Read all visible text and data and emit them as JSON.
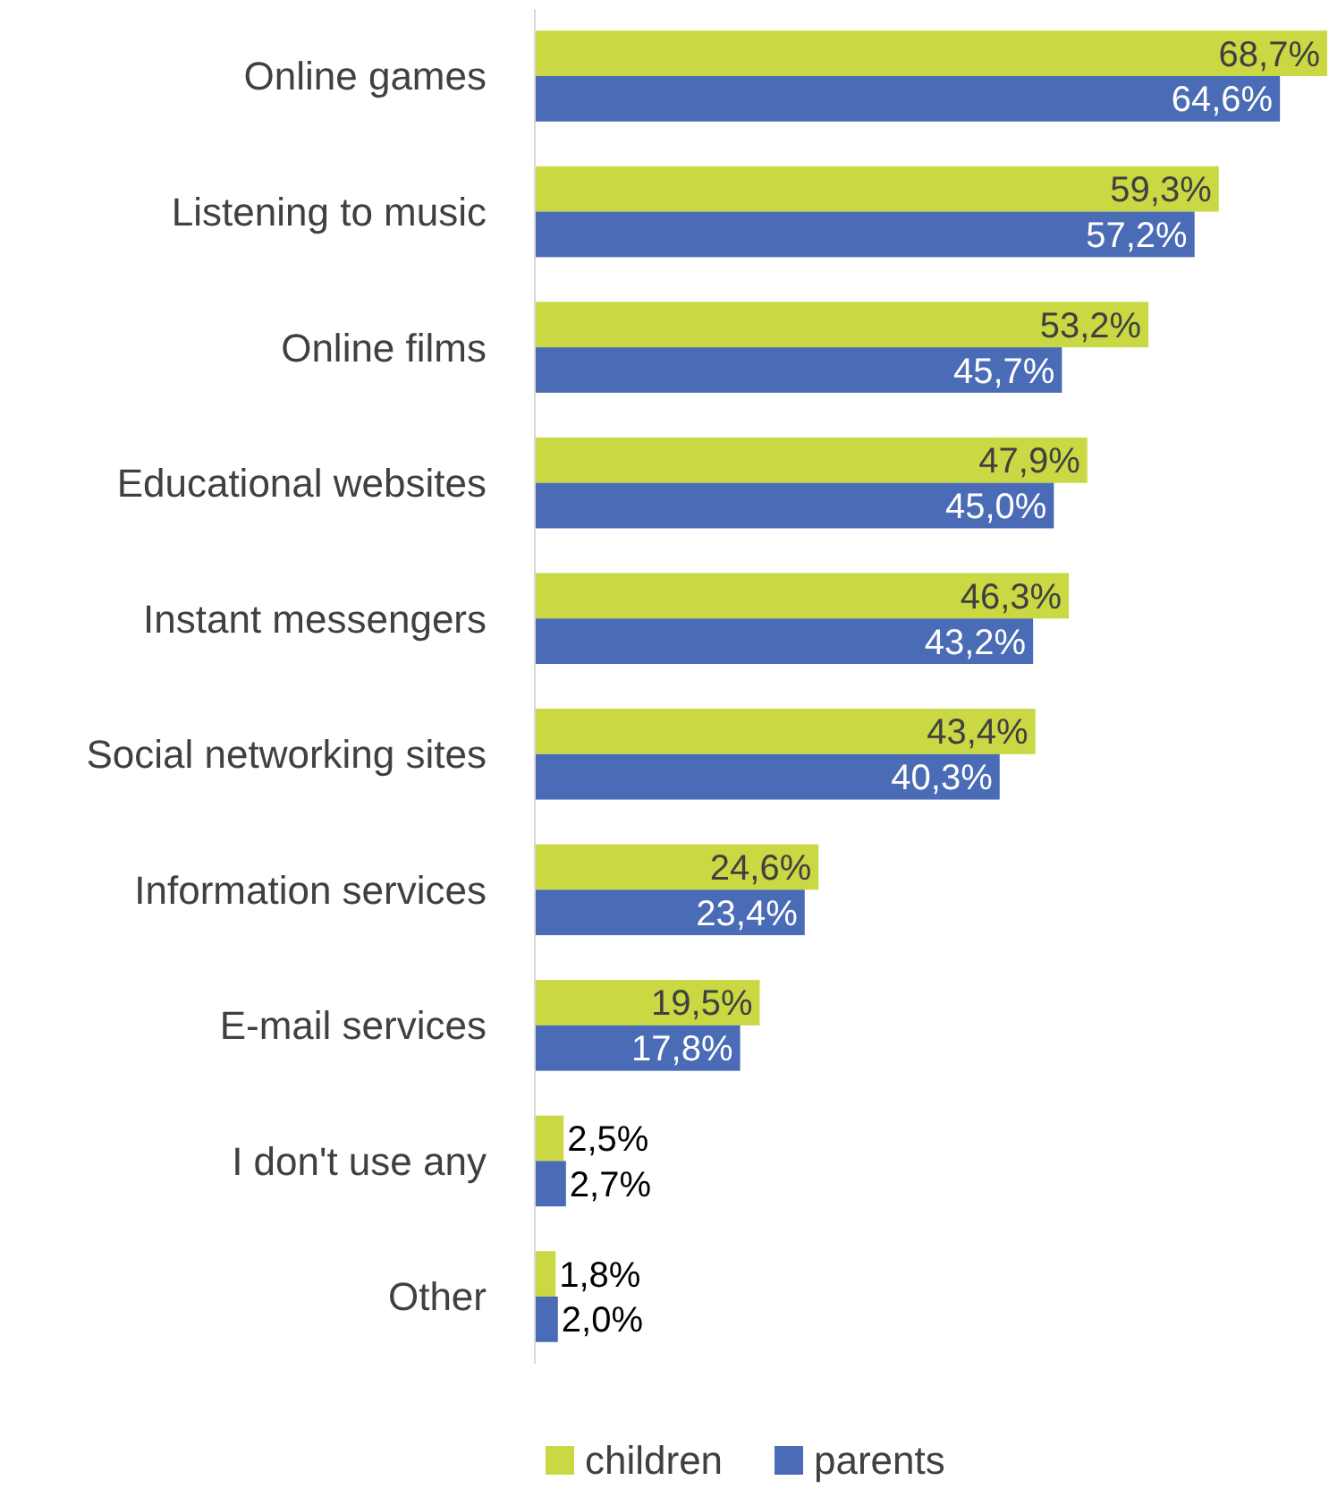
{
  "chart_data": {
    "type": "bar",
    "orientation": "horizontal",
    "relative": false,
    "categories": [
      "Online games",
      "Listening to music",
      "Online films",
      "Educational websites",
      "Instant messengers",
      "Social networking sites",
      "Information services",
      "E-mail services",
      "I don't use any",
      "Other"
    ],
    "series": [
      {
        "name": "children",
        "color": "#c9d843",
        "values": [
          68.7,
          59.3,
          53.2,
          47.9,
          46.3,
          43.4,
          24.6,
          19.5,
          2.5,
          1.8
        ],
        "value_labels": [
          "68,7%",
          "59,3%",
          "53,2%",
          "47,9%",
          "46,3%",
          "43,4%",
          "24,6%",
          "19,5%",
          "2,5%",
          "1,8%"
        ]
      },
      {
        "name": "parents",
        "color": "#4a6bb5",
        "values": [
          64.6,
          57.2,
          45.7,
          45.0,
          43.2,
          40.3,
          23.4,
          17.8,
          2.7,
          2.0
        ],
        "value_labels": [
          "64,6%",
          "57,2%",
          "45,7%",
          "45,0%",
          "43,2%",
          "40,3%",
          "23,4%",
          "17,8%",
          "2,7%",
          "2,0%"
        ]
      }
    ],
    "legend": "bottom"
  }
}
